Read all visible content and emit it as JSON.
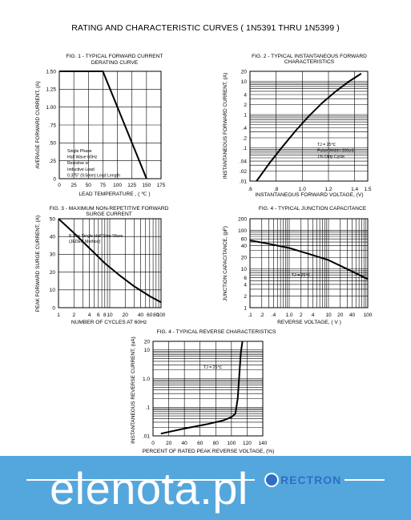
{
  "page_title": "RATING AND CHARACTERISTIC CURVES ( 1N5391 THRU 1N5399 )",
  "watermark_text": "elenota.pl",
  "logo_text": "RECTRON",
  "colors": {
    "banner": "#54a7dd",
    "watermark": "#ffffff",
    "logo": "#2d6fc4"
  },
  "chart_data": [
    {
      "id": "fig1",
      "type": "line",
      "title": "FIG. 1 - TYPICAL FORWARD CURRENT",
      "subtitle": "DERATING CURVE",
      "xlabel": "LEAD TEMPERATURE , ( ℃ )",
      "ylabel": "AVERAGE FORWARD CURRENT, (A)",
      "xscale": "linear",
      "yscale": "linear",
      "xlim": [
        0,
        175
      ],
      "ylim": [
        0,
        1.5
      ],
      "xticks": [
        0,
        25,
        50,
        75,
        100,
        125,
        150,
        175
      ],
      "xtick_labels": [
        "0",
        "25",
        "50",
        "75",
        "100",
        "125",
        "150",
        "175"
      ],
      "yticks": [
        0,
        0.25,
        0.5,
        0.75,
        1.0,
        1.25,
        1.5
      ],
      "ytick_labels": [
        "0",
        ".25",
        ".50",
        ".75",
        "1.00",
        "1.25",
        "1.50"
      ],
      "grid": true,
      "annotation": [
        "Single Phase",
        "Half Wave 60Hz",
        "Resistive or",
        "Inductive Load",
        "0.375\" (9.5mm) Lead Length"
      ],
      "series": [
        {
          "x": [
            0,
            75,
            150
          ],
          "y": [
            1.5,
            1.5,
            0
          ]
        }
      ]
    },
    {
      "id": "fig2",
      "type": "line",
      "title": "FIG. 2 - TYPICAL INSTANTANEOUS FORWARD",
      "subtitle": "CHARACTERISTICS",
      "xlabel": "INSTANTANEOUS FORWARD VOLTAGE, (V)",
      "ylabel": "INSTANTANEOUS FORWARD CURRENT, (A)",
      "xscale": "linear",
      "yscale": "log",
      "xlim": [
        0.6,
        1.5
      ],
      "ylim": [
        0.01,
        20
      ],
      "xticks": [
        0.6,
        0.8,
        1.0,
        1.2,
        1.4,
        1.5
      ],
      "xtick_labels": [
        ".6",
        ".8",
        "1.0",
        "1.2",
        "1.4",
        "1.5"
      ],
      "yticks": [
        0.01,
        0.02,
        0.04,
        0.1,
        0.2,
        0.4,
        1,
        2,
        4,
        10,
        20
      ],
      "ytick_labels": [
        ".01",
        ".02",
        ".04",
        ".1",
        ".2",
        ".4",
        "1",
        "2",
        "4",
        "10",
        "20"
      ],
      "grid": true,
      "annotation": [
        "TJ = 25℃",
        "Pulse Width=300uS",
        "1% Duty Cycle"
      ],
      "series": [
        {
          "x": [
            0.65,
            0.75,
            0.85,
            0.95,
            1.05,
            1.15,
            1.25,
            1.35,
            1.45
          ],
          "y": [
            0.01,
            0.035,
            0.11,
            0.33,
            0.9,
            2.2,
            4.8,
            9.5,
            17
          ]
        }
      ]
    },
    {
      "id": "fig3",
      "type": "line",
      "title": "FIG. 3 - MAXIMUM NON-REPETITIVE FORWARD",
      "subtitle": "SURGE CURRENT",
      "xlabel": "NUMBER OF CYCLES AT 60Hz",
      "ylabel": "PEAK FORWARD SURGE CURRENT, (A)",
      "xscale": "log",
      "yscale": "linear",
      "xlim": [
        1,
        100
      ],
      "ylim": [
        0,
        50
      ],
      "xticks": [
        1,
        2,
        4,
        6,
        8,
        10,
        20,
        40,
        60,
        80,
        100
      ],
      "xtick_labels": [
        "1",
        "2",
        "4",
        "6",
        "8",
        "10",
        "20",
        "40",
        "60",
        "80",
        "100"
      ],
      "yticks": [
        0,
        10,
        20,
        30,
        40,
        50
      ],
      "ytick_labels": [
        "0",
        "10",
        "20",
        "30",
        "40",
        "50"
      ],
      "grid": true,
      "annotation": [
        "8.3ms Single Half Sine-Wave",
        "(JEDEC Method)"
      ],
      "series": [
        {
          "x": [
            1,
            2,
            4,
            8,
            15,
            30,
            60,
            100
          ],
          "y": [
            50,
            42,
            33.5,
            25,
            18.5,
            12,
            6.5,
            3
          ]
        }
      ]
    },
    {
      "id": "fig4",
      "type": "line",
      "title": "FIG. 4 - TYPICAL JUNCTION CAPACITANCE",
      "xlabel": "REVERSE VOLTAGE, ( V )",
      "ylabel": "JUNCTION CAPACITANCE, (pF)",
      "xscale": "log",
      "yscale": "log",
      "xlim": [
        0.1,
        100
      ],
      "ylim": [
        1,
        200
      ],
      "xticks": [
        0.1,
        0.2,
        0.4,
        1,
        2,
        4,
        10,
        20,
        40,
        100
      ],
      "xtick_labels": [
        ".1",
        ".2",
        ".4",
        "1.0",
        "2",
        "4",
        "10",
        "20",
        "40",
        "100"
      ],
      "yticks": [
        1,
        2,
        4,
        6,
        10,
        20,
        40,
        60,
        100,
        200
      ],
      "ytick_labels": [
        "1",
        "2",
        "4",
        "6",
        "10",
        "20",
        "40",
        "60",
        "100",
        "200"
      ],
      "grid": true,
      "annotation": [
        "TJ = 25℃"
      ],
      "series": [
        {
          "x": [
            0.1,
            0.3,
            1,
            3,
            10,
            30,
            100
          ],
          "y": [
            55,
            45,
            35,
            25,
            17,
            10,
            5.5
          ]
        }
      ]
    },
    {
      "id": "fig5",
      "type": "line",
      "title": "FIG. 4 - TYPICAL REVERSE CHARACTERISTICS",
      "xlabel": "PERCENT OF RATED PEAK REVERSE VOLTAGE, (%)",
      "ylabel": "INSTANTANEOUS REVERSE CURRENT, (uA)",
      "xscale": "linear",
      "yscale": "log",
      "xlim": [
        0,
        140
      ],
      "ylim": [
        0.01,
        20
      ],
      "xticks": [
        0,
        20,
        40,
        60,
        80,
        100,
        120,
        140
      ],
      "xtick_labels": [
        "0",
        "20",
        "40",
        "60",
        "80",
        "100",
        "120",
        "140"
      ],
      "yticks": [
        0.01,
        0.1,
        1.0,
        10,
        20
      ],
      "ytick_labels": [
        ".01",
        ".1",
        "1.0",
        "10",
        "20"
      ],
      "grid": true,
      "annotation": [
        "TJ = 25℃"
      ],
      "series": [
        {
          "x": [
            10,
            40,
            70,
            90,
            100,
            105,
            108,
            110,
            112,
            114
          ],
          "y": [
            0.012,
            0.018,
            0.026,
            0.035,
            0.045,
            0.06,
            0.2,
            1.2,
            8,
            20
          ]
        }
      ]
    }
  ]
}
